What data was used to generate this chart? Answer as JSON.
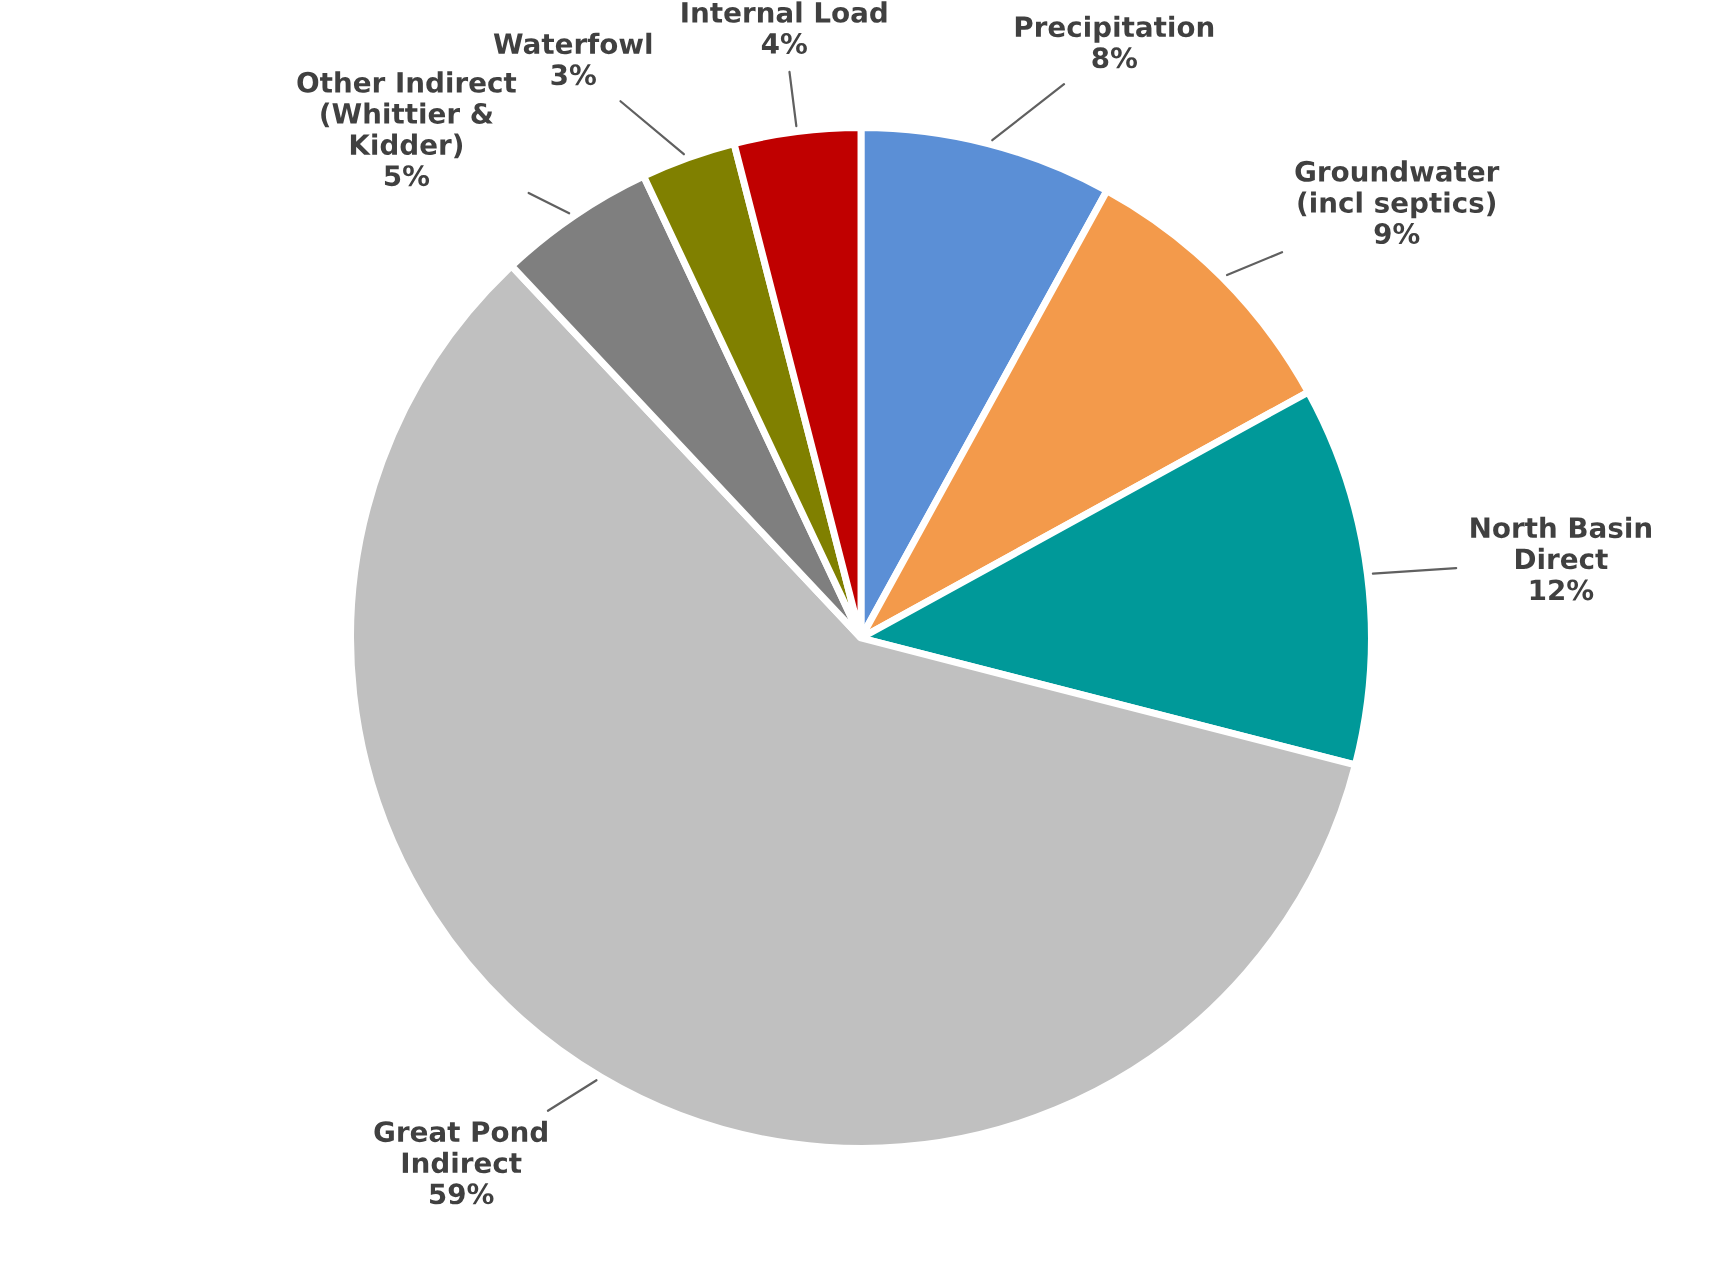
{
  "chart_data": {
    "type": "pie",
    "categories": [
      "Precipitation",
      "Groundwater\n(incl septics)",
      "North Basin\nDirect",
      "Great Pond\nIndirect",
      "Other Indirect\n(Whittier &\nKidder)",
      "Waterfowl",
      "Internal Load"
    ],
    "values": [
      8,
      9,
      12,
      59,
      5,
      3,
      4
    ],
    "value_labels": [
      "8%",
      "9%",
      "12%",
      "59%",
      "5%",
      "3%",
      "4%"
    ],
    "colors": [
      "#5b8fd6",
      "#f39a4b",
      "#009999",
      "#c0c0c0",
      "#7f7f7f",
      "#808000",
      "#c00000"
    ]
  }
}
